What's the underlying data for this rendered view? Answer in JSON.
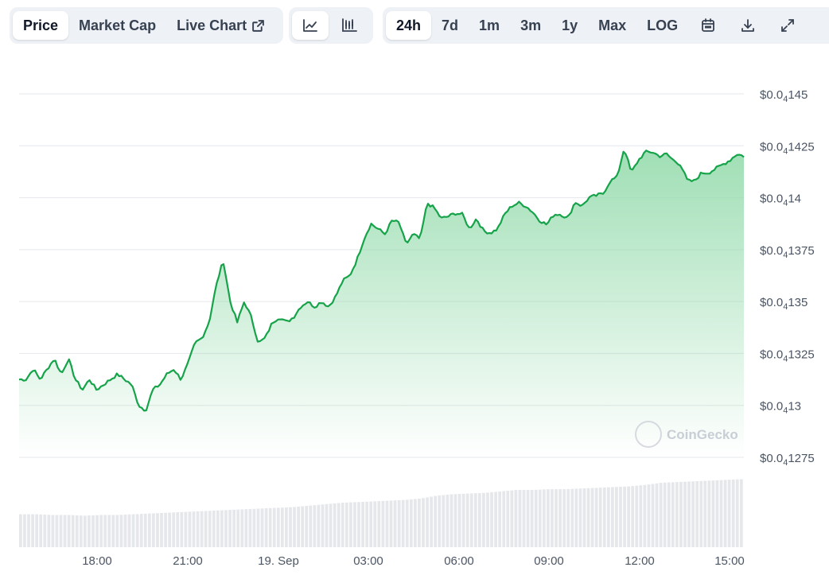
{
  "tabs": {
    "price": "Price",
    "market_cap": "Market Cap",
    "live_chart": "Live Chart"
  },
  "chart_style": {
    "line_icon": "line-chart-icon",
    "candle_icon": "candlestick-icon"
  },
  "ranges": {
    "h24": "24h",
    "d7": "7d",
    "m1": "1m",
    "m3": "3m",
    "y1": "1y",
    "max": "Max",
    "log": "LOG"
  },
  "tool_icons": {
    "calendar": "calendar-icon",
    "download": "download-icon",
    "fullscreen": "expand-icon"
  },
  "watermark": "CoinGecko",
  "colors": {
    "line": "#16a34a",
    "fill_top": "#8fd9a8",
    "grid": "#e5e7eb",
    "volume": "#e5e7eb"
  },
  "chart_data": {
    "type": "line",
    "series": [
      {
        "values": [
          0.0413125,
          0.0413125,
          0.0413175,
          0.0413125,
          0.0413175,
          0.0413225,
          0.041315,
          0.0413225,
          0.0413125,
          0.0413075,
          0.0413125,
          0.0413075,
          0.04131,
          0.0413125,
          0.041315,
          0.0413125,
          0.04131,
          0.0413,
          0.0412975,
          0.0413075,
          0.04131,
          0.041315,
          0.0413175,
          0.0413125,
          0.04132,
          0.04133,
          0.0413325,
          0.04134,
          0.0413575,
          0.04137,
          0.04135,
          0.04134,
          0.04135,
          0.0413425,
          0.04133,
          0.0413325,
          0.04134,
          0.0413425,
          0.04134,
          0.0413425,
          0.0413475,
          0.04135,
          0.0413475,
          0.04135,
          0.0413475,
          0.0413525,
          0.04136,
          0.0413625,
          0.04137,
          0.04138,
          0.0413875,
          0.041385,
          0.0413825,
          0.041389,
          0.041388,
          0.0413775,
          0.0413825,
          0.04138,
          0.0413975,
          0.041395,
          0.04139,
          0.041391,
          0.0413925,
          0.041392,
          0.041385,
          0.04139,
          0.041384,
          0.041383,
          0.041385,
          0.041392,
          0.041396,
          0.0413975,
          0.041396,
          0.041393,
          0.041389,
          0.041387,
          0.041392,
          0.041392,
          0.04139,
          0.041398,
          0.041396,
          0.0414,
          0.041401,
          0.041402,
          0.041408,
          0.04141,
          0.041424,
          0.041412,
          0.041418,
          0.041422,
          0.041422,
          0.04142,
          0.041421,
          0.041418,
          0.041416,
          0.041408,
          0.041408,
          0.041412,
          0.041412,
          0.041414,
          0.041416,
          0.041418,
          0.041421,
          0.04142
        ]
      }
    ],
    "x_ticks": [
      "18:00",
      "21:00",
      "19. Sep",
      "03:00",
      "06:00",
      "09:00",
      "12:00",
      "15:00"
    ],
    "y_ticks": [
      {
        "prefix": "$0.0",
        "sub": "4",
        "suffix": "145",
        "value": 0.04145
      },
      {
        "prefix": "$0.0",
        "sub": "4",
        "suffix": "1425",
        "value": 0.041425
      },
      {
        "prefix": "$0.0",
        "sub": "4",
        "suffix": "14",
        "value": 0.0414
      },
      {
        "prefix": "$0.0",
        "sub": "4",
        "suffix": "1375",
        "value": 0.041375
      },
      {
        "prefix": "$0.0",
        "sub": "4",
        "suffix": "135",
        "value": 0.04135
      },
      {
        "prefix": "$0.0",
        "sub": "4",
        "suffix": "1325",
        "value": 0.041325
      },
      {
        "prefix": "$0.0",
        "sub": "4",
        "suffix": "13",
        "value": 0.0413
      },
      {
        "prefix": "$0.0",
        "sub": "4",
        "suffix": "1275",
        "value": 0.041275
      }
    ],
    "ylim": [
      0.041275,
      0.04145
    ],
    "volume_relative": [
      0.46,
      0.46,
      0.45,
      0.45,
      0.44,
      0.45,
      0.45,
      0.46,
      0.47,
      0.48,
      0.49,
      0.5,
      0.51,
      0.52,
      0.53,
      0.54,
      0.55,
      0.56,
      0.58,
      0.6,
      0.62,
      0.63,
      0.64,
      0.65,
      0.66,
      0.68,
      0.72,
      0.74,
      0.75,
      0.76,
      0.78,
      0.8,
      0.8,
      0.81,
      0.81,
      0.82,
      0.83,
      0.84,
      0.85,
      0.87,
      0.9,
      0.91,
      0.92,
      0.93,
      0.94,
      0.95
    ],
    "grid": true
  }
}
